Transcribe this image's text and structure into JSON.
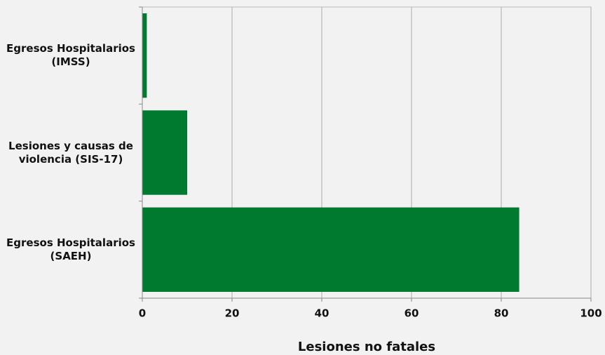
{
  "chart_data": {
    "type": "bar",
    "orientation": "horizontal",
    "categories": [
      "Egresos Hospitalarios (IMSS)",
      "Lesiones y causas de violencia (SIS-17)",
      "Egresos Hospitalarios (SAEH)"
    ],
    "values": [
      1,
      10,
      84
    ],
    "color": "#007a2f",
    "x_label": "Lesiones no fatales",
    "xlim": [
      0,
      100
    ],
    "xticks": [
      0,
      20,
      40,
      60,
      80,
      100
    ],
    "grid": true
  }
}
